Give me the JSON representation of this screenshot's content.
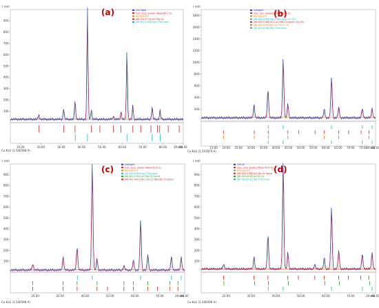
{
  "chart_data": [
    {
      "type": "line",
      "panel_label": "(a)",
      "ylabel": "I (rel)",
      "xlabel": "2theta",
      "wavelength": "Cu-Ka1 (1.540598 A)",
      "xlim": [
        5,
        90
      ],
      "ylim": [
        0,
        1000
      ],
      "xticks": [
        10,
        20,
        30,
        40,
        50,
        60,
        70,
        80,
        90
      ],
      "xtick_labels": [
        "10.00",
        "20.00",
        "30.00",
        "40.00",
        "50.00",
        "60.00",
        "70.00",
        "80.00",
        "90.00"
      ],
      "yticks": [
        100,
        200,
        300,
        400,
        500,
        600,
        700,
        800,
        900
      ],
      "legend": [
        {
          "text": "CSV MgAl",
          "color": "#2a2ad0"
        },
        {
          "text": "Calc. (exp. peaks) (Rwp=60.1 %)",
          "color": "#d02020"
        },
        {
          "text": "Background",
          "color": "#e08000"
        },
        {
          "text": "[96-154-0778] Al2 Mg O4",
          "color": "#d02020"
        },
        {
          "text": "[96-900-6796] Mg O Periclase",
          "color": "#10b8b8"
        }
      ],
      "peaks": [
        [
          19.0,
          40
        ],
        [
          31.2,
          100
        ],
        [
          36.8,
          170
        ],
        [
          42.9,
          1000
        ],
        [
          44.8,
          90
        ],
        [
          55.6,
          30
        ],
        [
          59.4,
          70
        ],
        [
          62.3,
          620
        ],
        [
          65.2,
          120
        ],
        [
          74.7,
          110
        ],
        [
          78.6,
          80
        ]
      ],
      "baseline": 30,
      "tick_rows": [
        {
          "name": "Al2 Mg O4",
          "color": "#d02020",
          "positions": [
            19.0,
            31.2,
            36.8,
            44.8,
            49.0,
            55.6,
            59.4,
            65.2,
            69.1,
            74.1,
            77.3,
            78.4,
            82.6,
            88.0
          ]
        },
        {
          "name": "Mg O Periclase",
          "color": "#10b8b8",
          "positions": [
            36.9,
            42.9,
            62.3,
            74.7,
            78.6
          ]
        }
      ]
    },
    {
      "type": "line",
      "panel_label": "(b)",
      "ylabel": "I (rel)",
      "xlabel": "2theta",
      "wavelength": "Cu-Ka1 (1.541874 A)",
      "xlim": [
        10,
        80
      ],
      "ylim": [
        0,
        1900
      ],
      "xticks": [
        15,
        20,
        25,
        30,
        35,
        40,
        45,
        50,
        55,
        60,
        65,
        70,
        75,
        80
      ],
      "xtick_labels": [
        "15.00",
        "20.00",
        "25.00",
        "30.00",
        "35.00",
        "40.00",
        "45.00",
        "50.00",
        "55.00",
        "60.00",
        "65.00",
        "70.00",
        "75.00",
        "80.00"
      ],
      "yticks": [
        200,
        400,
        600,
        800,
        1000,
        1200,
        1400,
        1600,
        1800
      ],
      "legend": [
        {
          "text": "CoMgAlO",
          "color": "#2a2ad0"
        },
        {
          "text": "Calc. (exl. phases) (Rwp=59.3 %)",
          "color": "#d02020"
        },
        {
          "text": "Background",
          "color": "#e08000"
        },
        {
          "text": "[96-900-0506] Mg O Periclase (47.2%)",
          "color": "#10b8b8"
        },
        {
          "text": "[96-900-5768] Al2 Co1.398 O4 Spinel (42.0%)",
          "color": "#d02020"
        },
        {
          "text": "[96-900-5727] Al2 Co O4 (0.1%)",
          "color": "#e08000"
        },
        {
          "text": "[96-900-6796] Mg O Periclase",
          "color": "#10b8b8"
        }
      ],
      "peaks": [
        [
          31.2,
          220
        ],
        [
          36.8,
          500
        ],
        [
          42.9,
          1020
        ],
        [
          44.8,
          230
        ],
        [
          59.4,
          140
        ],
        [
          62.3,
          700
        ],
        [
          65.2,
          180
        ],
        [
          74.7,
          160
        ],
        [
          78.6,
          160
        ]
      ],
      "baseline": 60,
      "tick_rows": [
        {
          "name": "Mg O Periclase",
          "color": "#10b8b8",
          "positions": [
            36.9,
            42.9,
            62.3,
            74.7,
            78.6
          ]
        },
        {
          "name": "Al2 Co O4 Spinel",
          "color": "#d02020",
          "positions": [
            19.0,
            31.3,
            36.9,
            44.8,
            49.1,
            55.7,
            59.4,
            65.2,
            69.2,
            74.2,
            77.4
          ]
        },
        {
          "name": "Al2 Co O4",
          "color": "#e08000",
          "positions": [
            19.0,
            31.3,
            36.9,
            44.8,
            59.4,
            65.2,
            77.4
          ]
        },
        {
          "name": "Mg O Periclase 2",
          "color": "#10b8b8",
          "positions": [
            36.9,
            42.9,
            62.3,
            74.7,
            78.6
          ]
        }
      ]
    },
    {
      "type": "line",
      "panel_label": "(c)",
      "ylabel": "I (rel)",
      "xlabel": "2theta",
      "wavelength": "Cu-Ka1 (1.540598 A)",
      "xlim": [
        10,
        80
      ],
      "ylim": [
        0,
        1000
      ],
      "xticks": [
        20,
        30,
        40,
        50,
        60,
        70,
        80
      ],
      "xtick_labels": [
        "20.00",
        "30.00",
        "40.00",
        "50.00",
        "60.00",
        "70.00",
        "80.00"
      ],
      "yticks": [
        100,
        200,
        300,
        400,
        500,
        600,
        700,
        800,
        900
      ],
      "legend": [
        {
          "text": "CoMgAlO",
          "color": "#2a2ad0"
        },
        {
          "text": "Calc. (exp. peaks) (Rwp=25.8 %)",
          "color": "#d02020"
        },
        {
          "text": "Background",
          "color": "#e08000"
        },
        {
          "text": "[96-900-6450] Mg O Periclase",
          "color": "#10b8b8"
        },
        {
          "text": "[96-901-2351] Al2 Mg O4 Spinel",
          "color": "#20a020"
        },
        {
          "text": "[96-901-4415] Al2 Co0.11 Mg0.89 O4 Spinel",
          "color": "#d02020"
        }
      ],
      "peaks": [
        [
          19.0,
          60
        ],
        [
          31.2,
          120
        ],
        [
          36.8,
          220
        ],
        [
          42.9,
          1000
        ],
        [
          44.8,
          100
        ],
        [
          55.6,
          40
        ],
        [
          59.4,
          90
        ],
        [
          62.3,
          470
        ],
        [
          65.2,
          140
        ],
        [
          74.7,
          130
        ],
        [
          78.6,
          120
        ]
      ],
      "baseline": 20,
      "tick_rows": [
        {
          "name": "Mg O Periclase",
          "color": "#10b8b8",
          "positions": [
            36.9,
            42.9,
            62.3,
            74.7,
            78.6
          ]
        },
        {
          "name": "Al2 Mg O4 Spinel",
          "color": "#20a020",
          "positions": [
            19.0,
            31.2,
            36.8,
            44.8,
            55.6,
            59.4,
            65.2,
            74.1,
            77.3
          ]
        },
        {
          "name": "Al2 Co Mg O4 Spinel",
          "color": "#d02020",
          "positions": [
            19.0,
            31.2,
            36.8,
            44.8,
            49.0,
            55.6,
            59.4,
            65.2,
            69.1,
            74.1,
            77.3
          ]
        }
      ]
    },
    {
      "type": "line",
      "panel_label": "(d)",
      "ylabel": "I (rel)",
      "xlabel": "2theta",
      "wavelength": "Cu-Ka1 (1.540598 A)",
      "xlim": [
        10,
        80
      ],
      "ylim": [
        0,
        1000
      ],
      "xticks": [
        20,
        30,
        40,
        50,
        60,
        70,
        80
      ],
      "xtick_labels": [
        "20.00",
        "30.00",
        "40.00",
        "50.00",
        "60.00",
        "70.00",
        "80.00"
      ],
      "yticks": [
        100,
        200,
        300,
        400,
        500,
        600,
        700,
        800,
        900
      ],
      "legend": [
        {
          "text": "CSV Ni",
          "color": "#2a2ad0"
        },
        {
          "text": "Calc. (exp. peaks) (Rwp=43.8 %)",
          "color": "#d02020"
        },
        {
          "text": "Background",
          "color": "#e08000"
        },
        {
          "text": "[96-900-5768] Al2 Mg O4 Spinel",
          "color": "#d02020"
        },
        {
          "text": "[96-900-8239] Al2 Ni O4",
          "color": "#20a020"
        },
        {
          "text": "[96-900-6791] Mg O Periclase",
          "color": "#10b8b8"
        }
      ],
      "peaks": [
        [
          19.0,
          50
        ],
        [
          31.2,
          110
        ],
        [
          36.8,
          330
        ],
        [
          42.9,
          1000
        ],
        [
          44.8,
          150
        ],
        [
          55.6,
          40
        ],
        [
          59.4,
          100
        ],
        [
          62.3,
          580
        ],
        [
          65.2,
          170
        ],
        [
          74.7,
          140
        ],
        [
          78.6,
          150
        ]
      ],
      "baseline": 30,
      "tick_rows": [
        {
          "name": "Al2 Mg O4 Spinel",
          "color": "#d02020",
          "positions": [
            19.0,
            31.2,
            36.8,
            44.8,
            49.0,
            55.6,
            59.4,
            65.2,
            69.1,
            74.1,
            77.3
          ]
        },
        {
          "name": "Al2 Ni O4",
          "color": "#20a020",
          "positions": [
            19.1,
            31.4,
            37.0,
            45.0,
            59.7,
            65.5,
            77.6
          ]
        },
        {
          "name": "Mg O Periclase",
          "color": "#10b8b8",
          "positions": [
            36.9,
            42.9,
            62.3,
            74.7,
            78.6
          ]
        }
      ]
    }
  ]
}
